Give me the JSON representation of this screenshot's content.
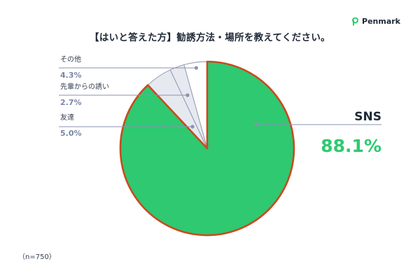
{
  "brand": {
    "name": "Penmark"
  },
  "colors": {
    "sns_fill": "#2ec971",
    "sns_stroke": "#c94a1e",
    "other_fill": "#e6e9ef",
    "other_stroke": "#8a93b0",
    "line": "#8a93b0",
    "small_value_text": "#7b86a8",
    "big_value_text": "#2ec971"
  },
  "chart_data": {
    "type": "pie",
    "title": "【はいと答えた方】勧誘方法・場所を教えてください。",
    "sample_size": "（n=750）",
    "slices": [
      {
        "label": "SNS",
        "value": 88.1,
        "value_text": "88.1%"
      },
      {
        "label": "友達",
        "value": 5.0,
        "value_text": "5.0%"
      },
      {
        "label": "先輩からの誘い",
        "value": 2.7,
        "value_text": "2.7%"
      },
      {
        "label": "その他",
        "value": 4.3,
        "value_text": "4.3%"
      }
    ]
  }
}
